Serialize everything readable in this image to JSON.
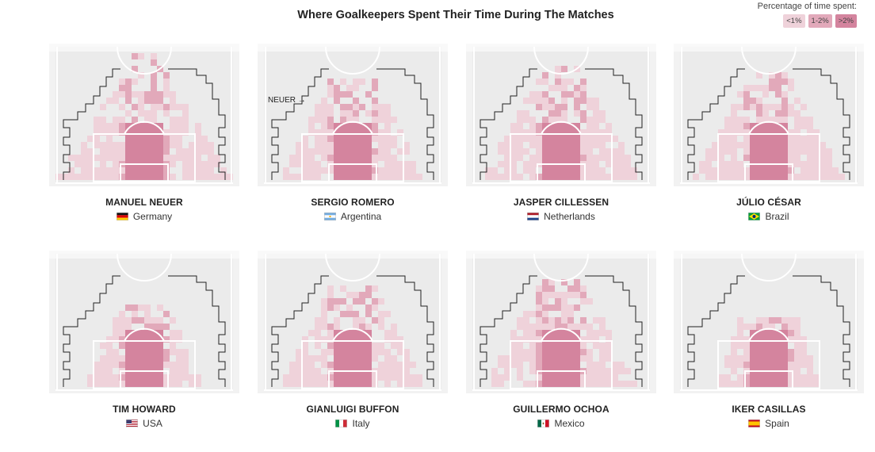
{
  "title": "Where Goalkeepers Spent Their Time During The Matches",
  "legend": {
    "label": "Percentage of time spent:",
    "items": [
      {
        "label": "<1%",
        "color": "#efd2da"
      },
      {
        "label": "1-2%",
        "color": "#e2a9ba"
      },
      {
        "label": ">2%",
        "color": "#d4849e"
      }
    ]
  },
  "colors": {
    "field": "#ebebeb",
    "line": "#ffffff",
    "boundary": "#222222"
  },
  "annotation": "NEUER →",
  "chart_data": {
    "type": "heatmap",
    "categories": [
      "<1%",
      "1-2%",
      ">2%"
    ],
    "panels": [
      {
        "name": "MANUEL NEUER",
        "country": "Germany",
        "flag": "germany-flag-icon",
        "extent": 0.98
      },
      {
        "name": "SERGIO ROMERO",
        "country": "Argentina",
        "flag": "argentina-flag-icon",
        "extent": 0.8
      },
      {
        "name": "JASPER CILLESSEN",
        "country": "Netherlands",
        "flag": "netherlands-flag-icon",
        "extent": 0.88
      },
      {
        "name": "JÚLIO CÉSAR",
        "country": "Brazil",
        "flag": "brazil-flag-icon",
        "extent": 0.82
      },
      {
        "name": "TIM HOWARD",
        "country": "USA",
        "flag": "usa-flag-icon",
        "extent": 0.62
      },
      {
        "name": "GIANLUIGI BUFFON",
        "country": "Italy",
        "flag": "italy-flag-icon",
        "extent": 0.8
      },
      {
        "name": "GUILLERMO OCHOA",
        "country": "Mexico",
        "flag": "mexico-flag-icon",
        "extent": 0.85
      },
      {
        "name": "IKER CASILLAS",
        "country": "Spain",
        "flag": "spain-flag-icon",
        "extent": 0.55
      }
    ]
  }
}
